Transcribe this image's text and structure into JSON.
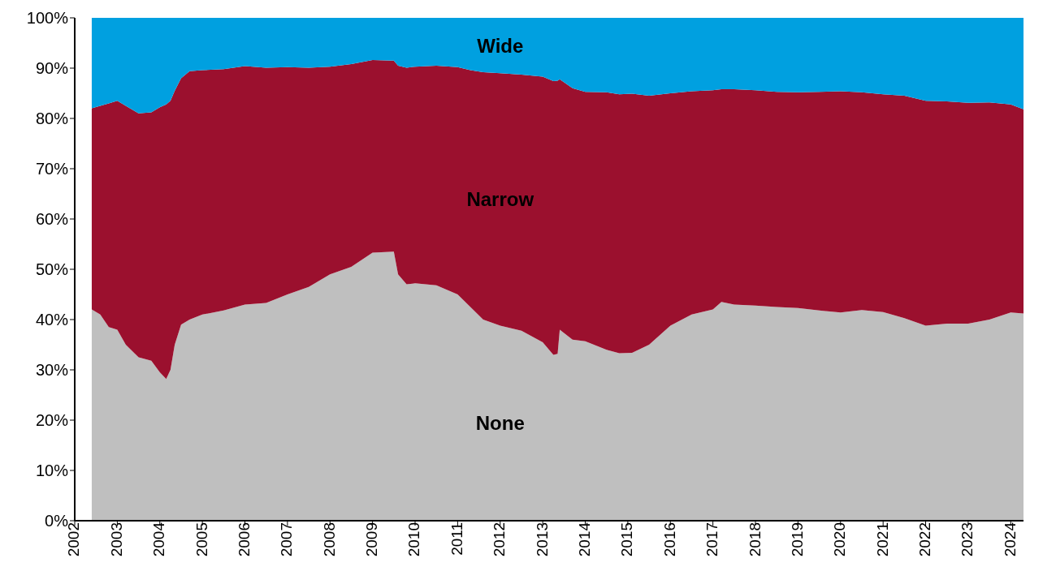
{
  "chart_data": {
    "type": "area",
    "stacked": true,
    "x": [
      2002.4,
      2002.6,
      2002.8,
      2003.0,
      2003.2,
      2003.5,
      2003.8,
      2004.0,
      2004.15,
      2004.25,
      2004.35,
      2004.5,
      2004.7,
      2005.0,
      2005.5,
      2006.0,
      2006.5,
      2007.0,
      2007.5,
      2008.0,
      2008.5,
      2009.0,
      2009.5,
      2009.6,
      2009.8,
      2010.0,
      2010.5,
      2011.0,
      2011.3,
      2011.6,
      2012.0,
      2012.5,
      2013.0,
      2013.25,
      2013.35,
      2013.4,
      2013.7,
      2014.0,
      2014.5,
      2014.8,
      2015.1,
      2015.5,
      2016.0,
      2016.5,
      2017.0,
      2017.2,
      2017.5,
      2018.0,
      2018.5,
      2019.0,
      2019.5,
      2020.0,
      2020.5,
      2021.0,
      2021.5,
      2022.0,
      2022.5,
      2023.0,
      2023.5,
      2024.0,
      2024.3
    ],
    "series": [
      {
        "name": "None",
        "color": "#bfbfbf",
        "values": [
          42,
          41,
          38.5,
          38,
          35,
          32.5,
          31.8,
          29.5,
          28.2,
          30,
          35,
          39,
          40,
          41,
          41.8,
          43,
          43.3,
          45,
          46.5,
          49,
          50.5,
          53.3,
          53.5,
          49,
          47,
          47.2,
          46.8,
          45,
          42.5,
          40,
          38.8,
          37.8,
          35.5,
          33,
          33.2,
          38,
          36,
          35.7,
          34,
          33.3,
          33.4,
          35,
          38.8,
          41,
          42,
          43.5,
          43,
          42.8,
          42.5,
          42.3,
          41.8,
          41.4,
          41.9,
          41.5,
          40.3,
          38.8,
          39.2,
          39.2,
          40,
          41.4,
          41.2
        ]
      },
      {
        "name": "Narrow",
        "color": "#9b102e",
        "values": [
          40,
          41.5,
          44.5,
          45.5,
          47.5,
          48.5,
          49.4,
          52.7,
          54.6,
          53.5,
          50.5,
          49,
          49.4,
          48.6,
          48,
          47.4,
          46.8,
          45.2,
          43.6,
          41.3,
          40.3,
          38.3,
          38,
          41.5,
          43.1,
          43.1,
          43.7,
          45.2,
          47.1,
          49.2,
          50.2,
          50.9,
          52.8,
          54.4,
          54.3,
          49.8,
          50,
          49.6,
          51.2,
          51.5,
          51.5,
          49.5,
          46.2,
          44.4,
          43.6,
          42.3,
          42.8,
          42.8,
          42.8,
          42.9,
          43.5,
          44,
          43.3,
          43.3,
          44.2,
          44.7,
          44.2,
          43.9,
          43.2,
          41.4,
          40.6
        ]
      },
      {
        "name": "Wide",
        "color": "#00a0e0",
        "values": [
          18,
          17.5,
          17,
          16.5,
          17.5,
          19,
          18.8,
          17.8,
          17.2,
          16.5,
          14.5,
          12,
          10.6,
          10.4,
          10.2,
          9.6,
          9.9,
          9.8,
          9.9,
          9.7,
          9.2,
          8.4,
          8.5,
          9.5,
          9.9,
          9.7,
          9.5,
          9.8,
          10.4,
          10.8,
          11,
          11.3,
          11.7,
          12.6,
          12.5,
          12.2,
          14,
          14.7,
          14.8,
          15.2,
          15.1,
          15.5,
          15,
          14.6,
          14.4,
          14.2,
          14.2,
          14.4,
          14.7,
          14.8,
          14.7,
          14.6,
          14.8,
          15.2,
          15.5,
          16.5,
          16.6,
          16.9,
          16.8,
          17.2,
          18.2
        ]
      }
    ],
    "xlim": [
      2002,
      2024.3
    ],
    "xticks": [
      2002,
      2003,
      2004,
      2005,
      2006,
      2007,
      2008,
      2009,
      2010,
      2011,
      2012,
      2013,
      2014,
      2015,
      2016,
      2017,
      2018,
      2019,
      2020,
      2021,
      2022,
      2023,
      2024
    ],
    "ylim": [
      0,
      100
    ],
    "yticks": [
      {
        "value": 0,
        "label": "0%"
      },
      {
        "value": 10,
        "label": "10%"
      },
      {
        "value": 20,
        "label": "20%"
      },
      {
        "value": 30,
        "label": "30%"
      },
      {
        "value": 40,
        "label": "40%"
      },
      {
        "value": 50,
        "label": "50%"
      },
      {
        "value": 60,
        "label": "60%"
      },
      {
        "value": 70,
        "label": "70%"
      },
      {
        "value": 80,
        "label": "80%"
      },
      {
        "value": 90,
        "label": "90%"
      },
      {
        "value": 100,
        "label": "100%"
      }
    ],
    "grid": false,
    "legend": false
  }
}
